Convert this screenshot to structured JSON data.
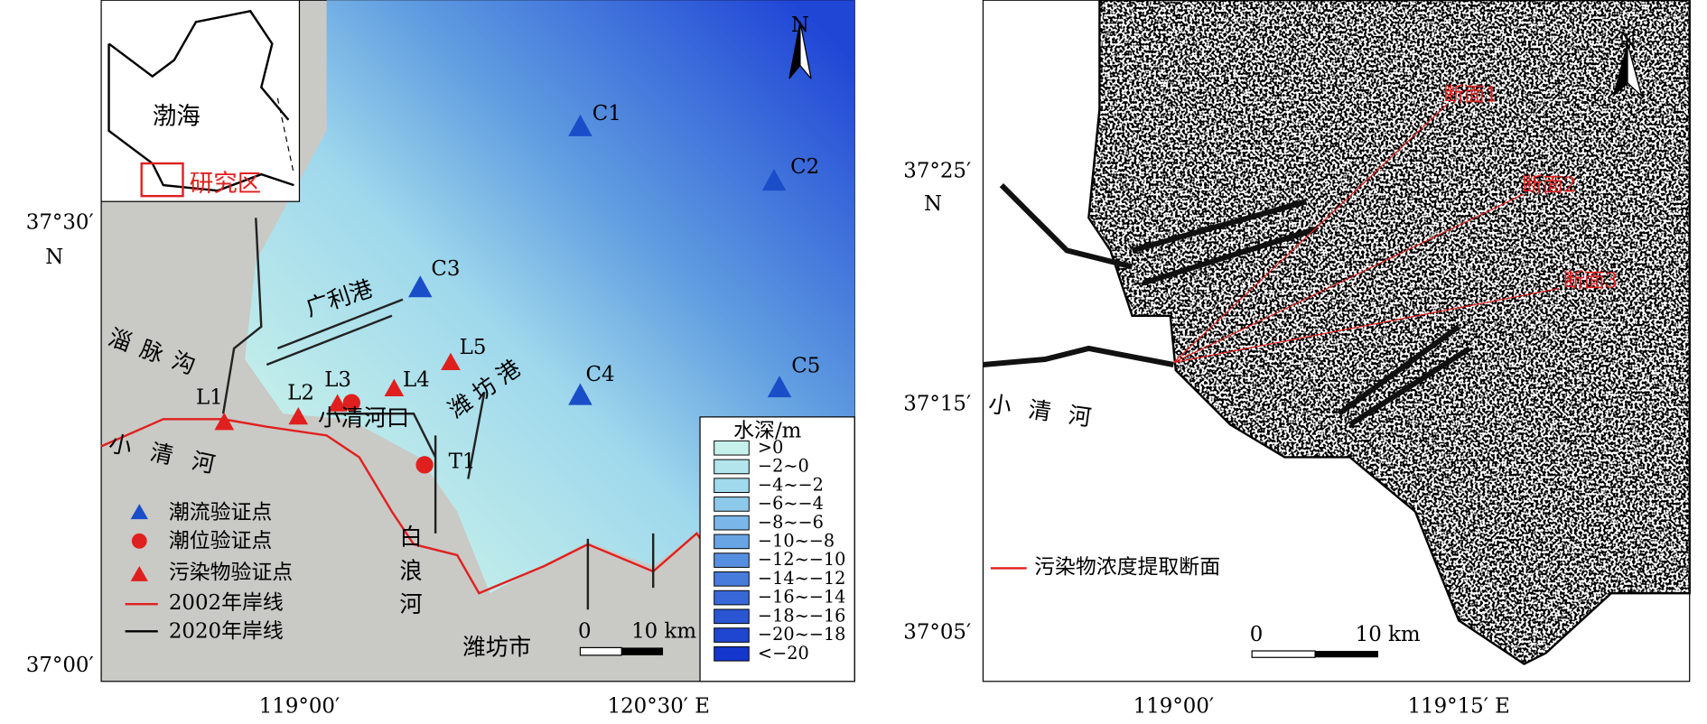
{
  "left_map": {
    "y_labels": [
      "37°30′",
      "N",
      "37°00′"
    ],
    "x_labels": [
      "119°00′",
      "120°30′ E"
    ],
    "inset": {
      "sea": "渤海",
      "study_area": "研究区"
    },
    "stations": {
      "current": [
        "C1",
        "C2",
        "C3",
        "C4",
        "C5"
      ],
      "pollutant": [
        "L1",
        "L2",
        "L3",
        "L4",
        "L5"
      ],
      "tide": [
        "T1"
      ]
    },
    "places": [
      "广利港",
      "淄脉沟",
      "小清河口",
      "潍坊港",
      "小清河",
      "白浪河",
      "潍坊市"
    ],
    "legend": [
      "潮流验证点",
      "潮位验证点",
      "污染物验证点",
      "2002年岸线",
      "2020年岸线"
    ],
    "depth_legend": {
      "title": "水深/m",
      "classes": [
        ">0",
        "−2~0",
        "−4~−2",
        "−6~−4",
        "−8~−6",
        "−10~−8",
        "−12~−10",
        "−14~−12",
        "−16~−14",
        "−18~−16",
        "−20~−18",
        "<−20"
      ]
    },
    "scale": [
      "0",
      "10 km"
    ],
    "north": "N"
  },
  "right_map": {
    "y_labels": [
      "37°25′",
      "N",
      "37°15′",
      "37°05′"
    ],
    "x_labels": [
      "119°00′",
      "119°15′ E"
    ],
    "sections": [
      "断面1",
      "断面2",
      "断面3"
    ],
    "legend": "污染物浓度提取断面",
    "place": "小清河",
    "scale": [
      "0",
      "10 km"
    ],
    "north": "N"
  }
}
